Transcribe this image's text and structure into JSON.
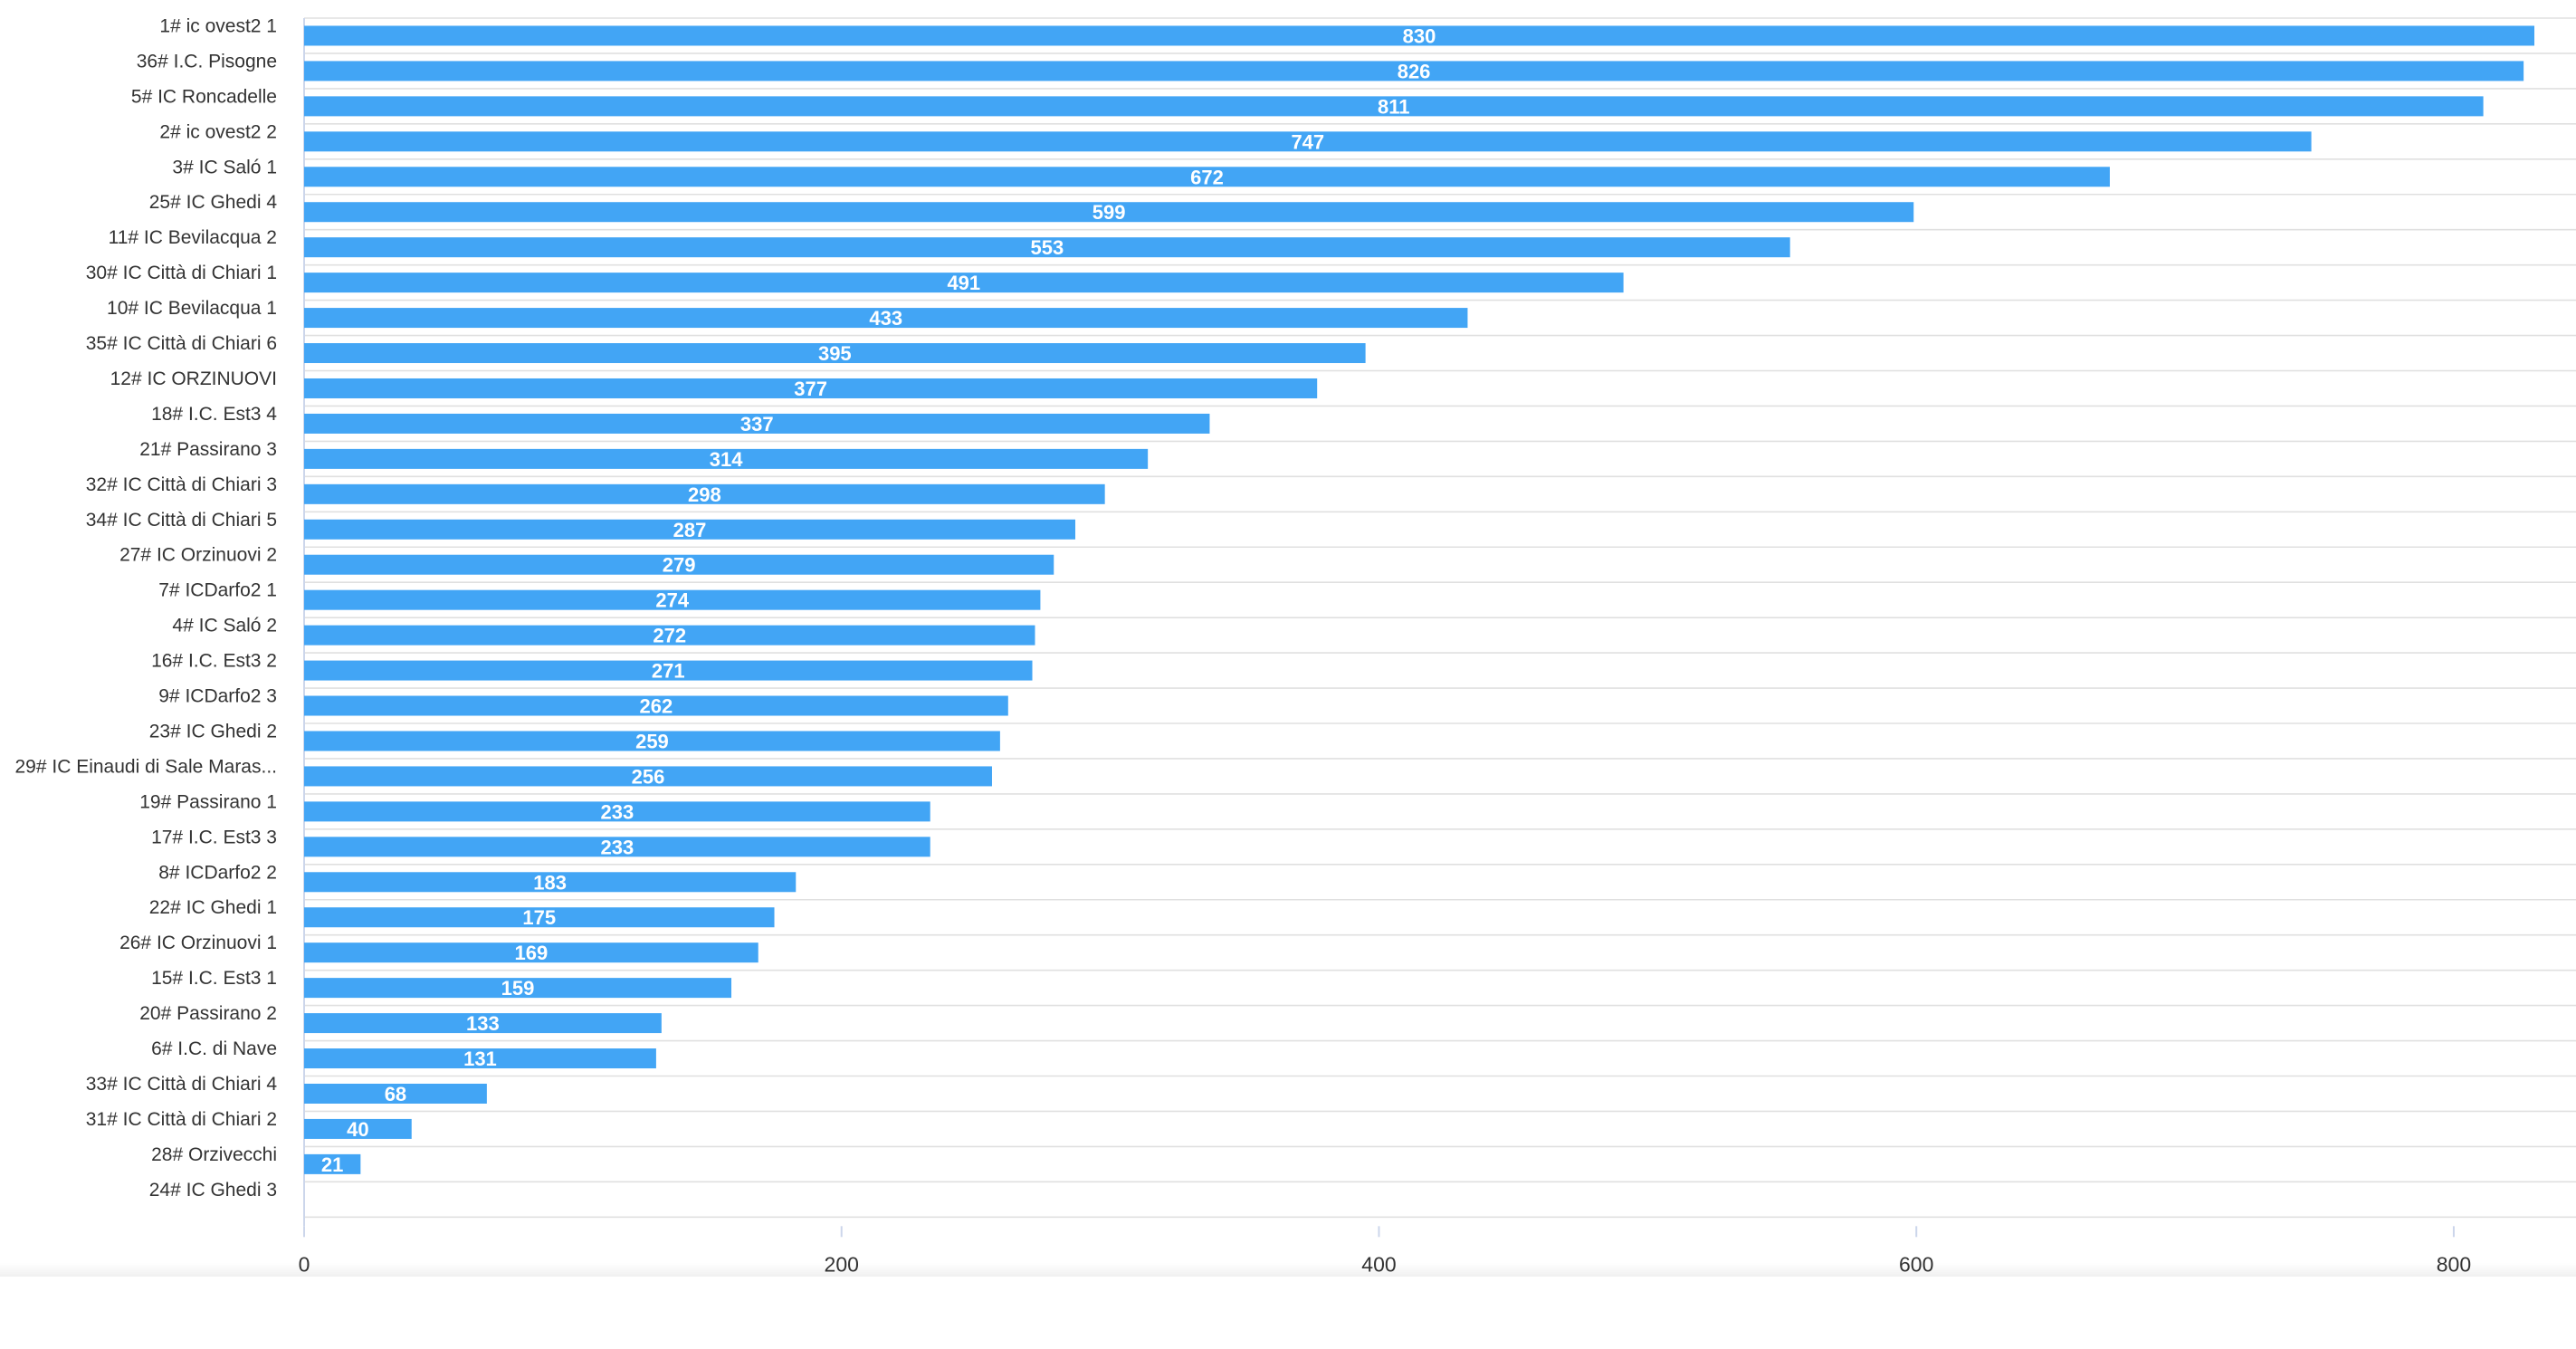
{
  "chart_data": {
    "type": "bar",
    "orientation": "horizontal",
    "categories": [
      "1# ic ovest2 1",
      "36# I.C. Pisogne",
      "5# IC Roncadelle",
      "2# ic ovest2 2",
      "3# IC Saló 1",
      "25# IC Ghedi 4",
      "11# IC Bevilacqua 2",
      "30# IC Città di Chiari 1",
      "10# IC Bevilacqua 1",
      "35# IC Città di Chiari 6",
      "12# IC ORZINUOVI",
      "18# I.C. Est3 4",
      "21# Passirano 3",
      "32# IC Città di Chiari 3",
      "34# IC Città di Chiari 5",
      "27# IC Orzinuovi 2",
      "7# ICDarfo2 1",
      "4# IC Saló 2",
      "16# I.C. Est3 2",
      "9# ICDarfo2 3",
      "23# IC Ghedi 2",
      "29# IC Einaudi di Sale Maras...",
      "19# Passirano 1",
      "17# I.C. Est3 3",
      "8# ICDarfo2 2",
      "22# IC Ghedi 1",
      "26# IC Orzinuovi 1",
      "15# I.C. Est3 1",
      "20# Passirano 2",
      "6# I.C. di Nave",
      "33# IC Città di Chiari 4",
      "31# IC Città di Chiari 2",
      "28# Orzivecchi",
      "24# IC Ghedi 3"
    ],
    "values": [
      830,
      826,
      811,
      747,
      672,
      599,
      553,
      491,
      433,
      395,
      377,
      337,
      314,
      298,
      287,
      279,
      274,
      272,
      271,
      262,
      259,
      256,
      233,
      233,
      183,
      175,
      169,
      159,
      133,
      131,
      68,
      40,
      21,
      0
    ],
    "value_labels": [
      "830",
      "826",
      "811",
      "747",
      "672",
      "599",
      "553",
      "491",
      "433",
      "395",
      "377",
      "337",
      "314",
      "298",
      "287",
      "279",
      "274",
      "272",
      "271",
      "262",
      "259",
      "256",
      "233",
      "233",
      "183",
      "175",
      "169",
      "159",
      "133",
      "131",
      "68",
      "40",
      "21",
      ""
    ],
    "x_ticks": [
      "0",
      "200",
      "400",
      "600",
      "800"
    ],
    "xlim": [
      0,
      850
    ],
    "grid": true,
    "colors": {
      "bar": "#42a5f5",
      "label": "#ffffff",
      "gridline": "#e0e0e0",
      "text": "#333333",
      "axis": "#ccd6eb"
    }
  }
}
